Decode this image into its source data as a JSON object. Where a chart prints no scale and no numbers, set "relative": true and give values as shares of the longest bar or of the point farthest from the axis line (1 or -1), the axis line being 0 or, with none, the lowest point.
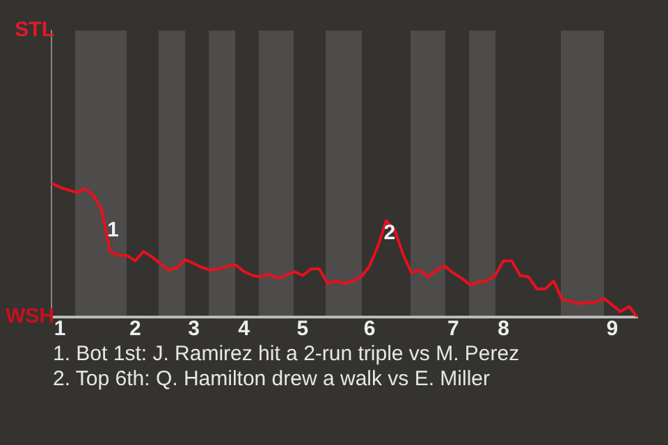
{
  "chart_data": {
    "type": "line",
    "categories": [
      null,
      "1",
      null,
      null,
      null,
      null,
      null,
      null,
      null,
      null,
      "2",
      null,
      null,
      null,
      null,
      null,
      null,
      "3",
      null,
      null,
      null,
      null,
      null,
      "4",
      null,
      null,
      null,
      null,
      null,
      null,
      "5",
      null,
      null,
      null,
      null,
      null,
      null,
      null,
      "6",
      null,
      null,
      null,
      null,
      null,
      null,
      null,
      null,
      null,
      "7",
      null,
      null,
      null,
      null,
      null,
      "8",
      null,
      null,
      null,
      null,
      null,
      null,
      null,
      null,
      null,
      null,
      null,
      null,
      "9",
      null,
      null,
      null
    ],
    "series": [
      {
        "color": "#e8101e",
        "values": [
          1,
          0.97,
          0.95,
          0.93,
          0.96,
          0.91,
          0.8,
          0.49,
          0.46,
          0.46,
          0.42,
          0.49,
          0.45,
          0.4,
          0.35,
          0.37,
          0.43,
          0.4,
          0.37,
          0.35,
          0.36,
          0.38,
          0.39,
          0.34,
          0.31,
          0.3,
          0.32,
          0.29,
          0.31,
          0.34,
          0.31,
          0.36,
          0.36,
          0.25,
          0.27,
          0.25,
          0.27,
          0.3,
          0.38,
          0.53,
          0.72,
          0.65,
          0.47,
          0.33,
          0.35,
          0.3,
          0.35,
          0.38,
          0.33,
          0.29,
          0.24,
          0.26,
          0.27,
          0.31,
          0.42,
          0.42,
          0.31,
          0.3,
          0.21,
          0.21,
          0.27,
          0.13,
          0.12,
          0.1,
          0.11,
          0.11,
          0.14,
          0.09,
          0.04,
          0.08,
          0
        ]
      }
    ],
    "relative": true,
    "grid": false,
    "marker": "none",
    "line_style": "solid",
    "annotations": [
      "STL",
      "WSH",
      "1",
      "2",
      "1. Bot 1st: J. Ramirez hit a 2-run triple vs M. Perez",
      "2. Top 6th: Q. Hamilton drew a walk vs E. Miller"
    ]
  }
}
